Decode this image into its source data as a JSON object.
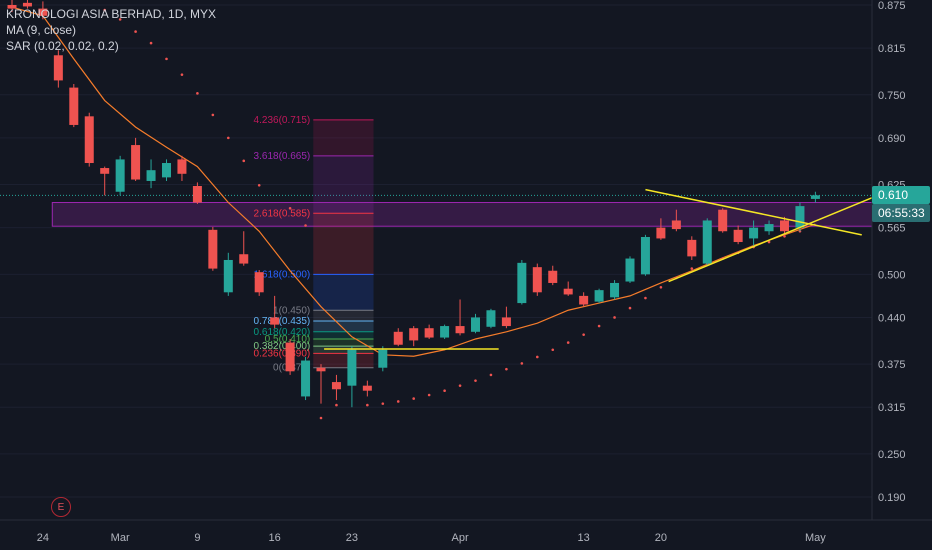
{
  "legend": {
    "title": "KRONOLOGI ASIA BERHAD, 1D, MYX",
    "ma": "MA (9, close)",
    "sar": "SAR (0.02, 0.02, 0.2)"
  },
  "badges": {
    "last_price": "0.610",
    "countdown": "06:55:33",
    "last_color": "#26a69a",
    "timer_color": "#2a6e72"
  },
  "e_button": "E",
  "colors": {
    "bg": "#131722",
    "up": "#26a69a",
    "down": "#ef5350",
    "ma": "#f57c2b",
    "sar": "#ef5350",
    "trend": "#f5e625",
    "zone": "#9c27b0"
  },
  "chart_data": {
    "type": "candlestick",
    "ylim": [
      0.15,
      0.89
    ],
    "y_ticks": [
      "0.875",
      "0.815",
      "0.750",
      "0.690",
      "0.625",
      "0.565",
      "0.500",
      "0.440",
      "0.375",
      "0.315",
      "0.250",
      "0.190"
    ],
    "x_ticks": [
      {
        "label": "24",
        "i": 2
      },
      {
        "label": "Mar",
        "i": 7
      },
      {
        "label": "9",
        "i": 12
      },
      {
        "label": "16",
        "i": 17
      },
      {
        "label": "23",
        "i": 22
      },
      {
        "label": "Apr",
        "i": 29
      },
      {
        "label": "13",
        "i": 37
      },
      {
        "label": "20",
        "i": 42
      },
      {
        "label": "May",
        "i": 52
      }
    ],
    "candles": [
      {
        "o": 0.875,
        "h": 0.885,
        "l": 0.865,
        "c": 0.87
      },
      {
        "o": 0.878,
        "h": 0.884,
        "l": 0.87,
        "c": 0.873
      },
      {
        "o": 0.87,
        "h": 0.88,
        "l": 0.855,
        "c": 0.86
      },
      {
        "o": 0.805,
        "h": 0.812,
        "l": 0.76,
        "c": 0.77
      },
      {
        "o": 0.76,
        "h": 0.765,
        "l": 0.705,
        "c": 0.708
      },
      {
        "o": 0.72,
        "h": 0.725,
        "l": 0.65,
        "c": 0.655
      },
      {
        "o": 0.648,
        "h": 0.65,
        "l": 0.61,
        "c": 0.64
      },
      {
        "o": 0.615,
        "h": 0.665,
        "l": 0.61,
        "c": 0.66
      },
      {
        "o": 0.68,
        "h": 0.69,
        "l": 0.63,
        "c": 0.632
      },
      {
        "o": 0.63,
        "h": 0.66,
        "l": 0.62,
        "c": 0.645
      },
      {
        "o": 0.635,
        "h": 0.66,
        "l": 0.63,
        "c": 0.655
      },
      {
        "o": 0.66,
        "h": 0.665,
        "l": 0.63,
        "c": 0.64
      },
      {
        "o": 0.623,
        "h": 0.628,
        "l": 0.598,
        "c": 0.6
      },
      {
        "o": 0.562,
        "h": 0.566,
        "l": 0.505,
        "c": 0.508
      },
      {
        "o": 0.475,
        "h": 0.53,
        "l": 0.47,
        "c": 0.52
      },
      {
        "o": 0.528,
        "h": 0.56,
        "l": 0.512,
        "c": 0.515
      },
      {
        "o": 0.503,
        "h": 0.506,
        "l": 0.47,
        "c": 0.475
      },
      {
        "o": 0.44,
        "h": 0.47,
        "l": 0.425,
        "c": 0.43
      },
      {
        "o": 0.405,
        "h": 0.41,
        "l": 0.36,
        "c": 0.365
      },
      {
        "o": 0.33,
        "h": 0.385,
        "l": 0.325,
        "c": 0.38
      },
      {
        "o": 0.37,
        "h": 0.375,
        "l": 0.32,
        "c": 0.365
      },
      {
        "o": 0.35,
        "h": 0.36,
        "l": 0.325,
        "c": 0.34
      },
      {
        "o": 0.345,
        "h": 0.4,
        "l": 0.315,
        "c": 0.395
      },
      {
        "o": 0.345,
        "h": 0.352,
        "l": 0.33,
        "c": 0.338
      },
      {
        "o": 0.37,
        "h": 0.4,
        "l": 0.365,
        "c": 0.395
      },
      {
        "o": 0.42,
        "h": 0.425,
        "l": 0.4,
        "c": 0.402
      },
      {
        "o": 0.425,
        "h": 0.428,
        "l": 0.4,
        "c": 0.408
      },
      {
        "o": 0.425,
        "h": 0.43,
        "l": 0.41,
        "c": 0.412
      },
      {
        "o": 0.412,
        "h": 0.43,
        "l": 0.41,
        "c": 0.428
      },
      {
        "o": 0.428,
        "h": 0.465,
        "l": 0.415,
        "c": 0.418
      },
      {
        "o": 0.42,
        "h": 0.445,
        "l": 0.418,
        "c": 0.44
      },
      {
        "o": 0.427,
        "h": 0.452,
        "l": 0.425,
        "c": 0.45
      },
      {
        "o": 0.44,
        "h": 0.455,
        "l": 0.425,
        "c": 0.428
      },
      {
        "o": 0.46,
        "h": 0.52,
        "l": 0.458,
        "c": 0.516
      },
      {
        "o": 0.51,
        "h": 0.515,
        "l": 0.47,
        "c": 0.475
      },
      {
        "o": 0.505,
        "h": 0.512,
        "l": 0.485,
        "c": 0.488
      },
      {
        "o": 0.48,
        "h": 0.49,
        "l": 0.47,
        "c": 0.472
      },
      {
        "o": 0.47,
        "h": 0.475,
        "l": 0.455,
        "c": 0.458
      },
      {
        "o": 0.462,
        "h": 0.48,
        "l": 0.46,
        "c": 0.478
      },
      {
        "o": 0.468,
        "h": 0.492,
        "l": 0.465,
        "c": 0.488
      },
      {
        "o": 0.49,
        "h": 0.525,
        "l": 0.488,
        "c": 0.522
      },
      {
        "o": 0.5,
        "h": 0.555,
        "l": 0.498,
        "c": 0.552
      },
      {
        "o": 0.565,
        "h": 0.578,
        "l": 0.548,
        "c": 0.55
      },
      {
        "o": 0.575,
        "h": 0.59,
        "l": 0.56,
        "c": 0.563
      },
      {
        "o": 0.548,
        "h": 0.553,
        "l": 0.52,
        "c": 0.525
      },
      {
        "o": 0.515,
        "h": 0.578,
        "l": 0.512,
        "c": 0.575
      },
      {
        "o": 0.59,
        "h": 0.592,
        "l": 0.558,
        "c": 0.56
      },
      {
        "o": 0.562,
        "h": 0.568,
        "l": 0.542,
        "c": 0.545
      },
      {
        "o": 0.55,
        "h": 0.575,
        "l": 0.54,
        "c": 0.565
      },
      {
        "o": 0.56,
        "h": 0.575,
        "l": 0.555,
        "c": 0.57
      },
      {
        "o": 0.575,
        "h": 0.58,
        "l": 0.555,
        "c": 0.56
      },
      {
        "o": 0.565,
        "h": 0.6,
        "l": 0.56,
        "c": 0.595
      },
      {
        "o": 0.605,
        "h": 0.615,
        "l": 0.6,
        "c": 0.61
      }
    ],
    "ma": [
      [
        0,
        0.872
      ],
      [
        2,
        0.86
      ],
      [
        4,
        0.8
      ],
      [
        6,
        0.742
      ],
      [
        8,
        0.705
      ],
      [
        10,
        0.677
      ],
      [
        12,
        0.65
      ],
      [
        14,
        0.6
      ],
      [
        16,
        0.56
      ],
      [
        18,
        0.505
      ],
      [
        20,
        0.455
      ],
      [
        22,
        0.413
      ],
      [
        24,
        0.388
      ],
      [
        26,
        0.386
      ],
      [
        28,
        0.395
      ],
      [
        30,
        0.41
      ],
      [
        32,
        0.42
      ],
      [
        34,
        0.432
      ],
      [
        36,
        0.45
      ],
      [
        38,
        0.46
      ],
      [
        40,
        0.47
      ],
      [
        42,
        0.488
      ],
      [
        44,
        0.505
      ],
      [
        46,
        0.523
      ],
      [
        48,
        0.54
      ],
      [
        50,
        0.555
      ],
      [
        52,
        0.57
      ]
    ],
    "sar": [
      [
        6,
        0.868
      ],
      [
        7,
        0.855
      ],
      [
        8,
        0.838
      ],
      [
        9,
        0.822
      ],
      [
        10,
        0.8
      ],
      [
        11,
        0.778
      ],
      [
        12,
        0.752
      ],
      [
        13,
        0.722
      ],
      [
        14,
        0.69
      ],
      [
        15,
        0.658
      ],
      [
        16,
        0.624
      ],
      [
        18,
        0.592
      ],
      [
        19,
        0.568
      ],
      [
        20,
        0.3
      ],
      [
        21,
        0.318
      ],
      [
        23,
        0.318
      ],
      [
        24,
        0.32
      ],
      [
        25,
        0.323
      ],
      [
        26,
        0.327
      ],
      [
        27,
        0.332
      ],
      [
        28,
        0.338
      ],
      [
        29,
        0.345
      ],
      [
        30,
        0.352
      ],
      [
        31,
        0.36
      ],
      [
        32,
        0.368
      ],
      [
        33,
        0.376
      ],
      [
        34,
        0.385
      ],
      [
        35,
        0.395
      ],
      [
        36,
        0.405
      ],
      [
        37,
        0.416
      ],
      [
        38,
        0.428
      ],
      [
        39,
        0.44
      ],
      [
        40,
        0.453
      ],
      [
        41,
        0.467
      ],
      [
        42,
        0.482
      ],
      [
        43,
        0.495
      ],
      [
        44,
        0.508
      ],
      [
        45,
        0.515
      ],
      [
        46,
        0.522
      ],
      [
        47,
        0.53
      ],
      [
        48,
        0.538
      ],
      [
        49,
        0.545
      ],
      [
        50,
        0.553
      ],
      [
        51,
        0.56
      ]
    ],
    "fib_box": {
      "i0": 19.5,
      "i1": 23.4
    },
    "fib_levels": [
      {
        "label": "4.236(0.715)",
        "value": 0.715,
        "color": "#c2185b"
      },
      {
        "label": "3.618(0.665)",
        "value": 0.665,
        "color": "#9c27b0"
      },
      {
        "label": "2.618(0.585)",
        "value": 0.585,
        "color": "#f23645"
      },
      {
        "label": "1.618(0.500)",
        "value": 0.5,
        "color": "#2962ff"
      },
      {
        "label": "1(0.450)",
        "value": 0.45,
        "color": "#787b86"
      },
      {
        "label": "0.786(0.435)",
        "value": 0.435,
        "color": "#64b5f6"
      },
      {
        "label": "0.618(0.420)",
        "value": 0.42,
        "color": "#089981"
      },
      {
        "label": "0.5(0.410)",
        "value": 0.41,
        "color": "#4caf50"
      },
      {
        "label": "0.382(0.400)",
        "value": 0.4,
        "color": "#81c784"
      },
      {
        "label": "0.236(0.390)",
        "value": 0.39,
        "color": "#f23645"
      },
      {
        "label": "0(0.370)",
        "value": 0.37,
        "color": "#787b86"
      }
    ],
    "zone": {
      "i0": -0.5,
      "i1": 57.5,
      "y_top": 0.6,
      "y_bottom": 0.567
    },
    "last_price_line": 0.61,
    "support_line": {
      "i0": 20.2,
      "i1": 31.5,
      "y": 0.396
    },
    "trend_lines": [
      {
        "i0": 41.0,
        "y0": 0.618,
        "i1": 55.0,
        "y1": 0.555
      },
      {
        "i0": 42.5,
        "y0": 0.49,
        "i1": 56.5,
        "y1": 0.614
      }
    ]
  }
}
